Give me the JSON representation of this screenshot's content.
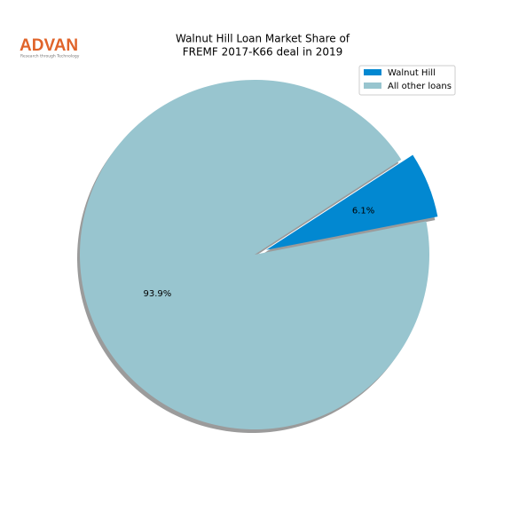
{
  "logo": {
    "name": "ADVAN",
    "tagline": "Research through Technology"
  },
  "chart_data": {
    "type": "pie",
    "title": [
      "Walnut Hill Loan Market Share of",
      "FREMF 2017-K66 deal in 2019"
    ],
    "categories": [
      "Walnut Hill",
      "All other loans"
    ],
    "values": [
      6.1,
      93.9
    ],
    "value_labels": [
      "6.1%",
      "93.9%"
    ],
    "colors": [
      "#0288d1",
      "#98c5cf"
    ],
    "legend": "upper right",
    "shadow": true
  }
}
